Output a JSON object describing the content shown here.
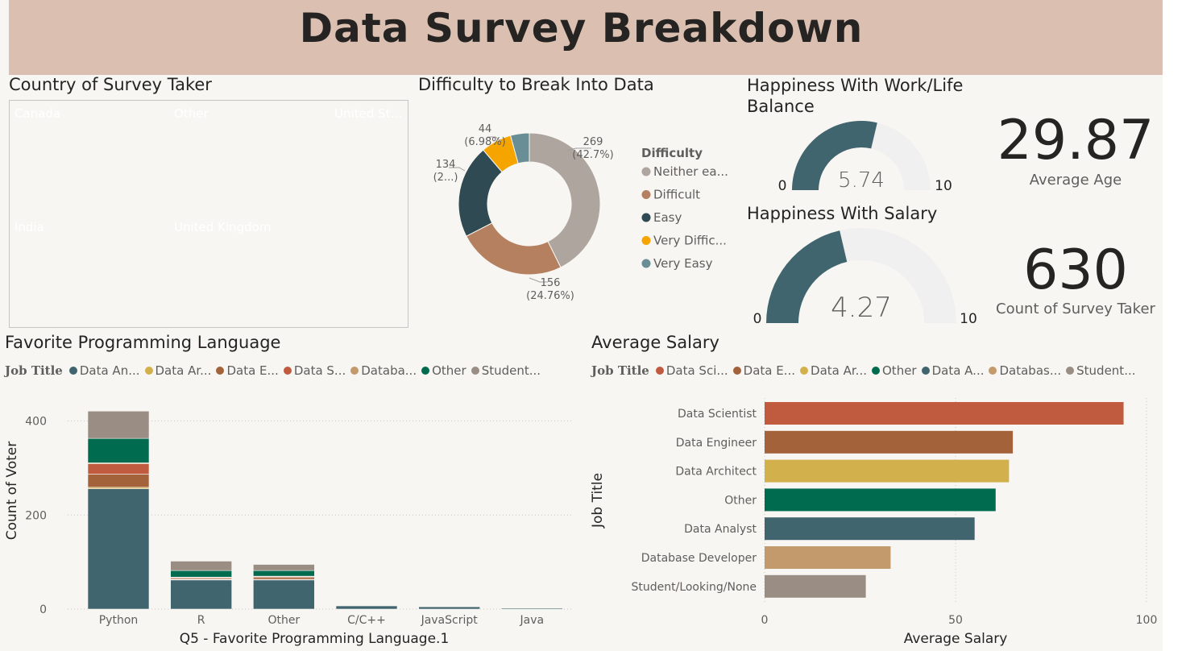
{
  "title": "Data Survey Breakdown",
  "colors": {
    "data_analyst": "#41656f",
    "data_architect": "#d2b04c",
    "data_engineer": "#a4623a",
    "data_scientist": "#c05b3f",
    "database_developer": "#c39a6b",
    "other": "#006b4e",
    "student": "#998d84"
  },
  "treemap": {
    "title": "Country of Survey Taker",
    "tiles": [
      {
        "label": "Canada",
        "color": "#41656f"
      },
      {
        "label": "Other",
        "color": "#a4623a"
      },
      {
        "label": "United St...",
        "color": "#c39a6b"
      },
      {
        "label": "India",
        "color": "#d2b04c"
      },
      {
        "label": "United Kingdom",
        "color": "#c05b3f"
      }
    ]
  },
  "donut": {
    "title": "Difficulty to Break Into Data",
    "legend_title": "Difficulty",
    "slices": [
      {
        "legend": "Neither ea...",
        "value": 269,
        "label1": "269",
        "label2": "(42.7%)",
        "color": "#aea59e"
      },
      {
        "legend": "Difficult",
        "value": 156,
        "label1": "156",
        "label2": "(24.76%)",
        "color": "#b5805f"
      },
      {
        "legend": "Easy",
        "value": 134,
        "label1": "134",
        "label2": "(2...)",
        "color": "#2f4a52"
      },
      {
        "legend": "Very Diffic...",
        "value": 44,
        "label1": "44",
        "label2": "(6.98%)",
        "color": "#f6a400"
      },
      {
        "legend": "Very Easy",
        "value": 27,
        "label1": "",
        "label2": "",
        "color": "#6a8e96"
      }
    ]
  },
  "gauge_worklife": {
    "title_line1": "Happiness With Work/Life",
    "title_line2": "Balance",
    "value": 5.74,
    "value_text": "5.74",
    "min": 0,
    "max": 10,
    "min_text": "0",
    "max_text": "10"
  },
  "gauge_salary": {
    "title": "Happiness With Salary",
    "value": 4.27,
    "value_text": "4.27",
    "min": 0,
    "max": 10,
    "min_text": "0",
    "max_text": "10"
  },
  "card_age": {
    "value": "29.87",
    "label": "Average Age"
  },
  "card_count": {
    "value": "630",
    "label": "Count of Survey Taker"
  },
  "chart_data": [
    {
      "type": "bar",
      "stacked": true,
      "title": "Favorite Programming Language",
      "legend_title": "Job Title",
      "legend": [
        "Data An...",
        "Data Ar...",
        "Data E...",
        "Data S...",
        "Databa...",
        "Other",
        "Student..."
      ],
      "xlabel": "Q5 - Favorite Programming Language.1",
      "ylabel": "Count of Voter",
      "ylim": [
        0,
        430
      ],
      "yticks": [
        0,
        200,
        400
      ],
      "categories": [
        "Python",
        "R",
        "Other",
        "C/C++",
        "JavaScript",
        "Java"
      ],
      "series": [
        {
          "name": "Data An...",
          "color": "#41656f",
          "values": [
            256,
            62,
            62,
            7,
            5,
            2
          ]
        },
        {
          "name": "Data Ar...",
          "color": "#d2b04c",
          "values": [
            3,
            1,
            1,
            0,
            0,
            0
          ]
        },
        {
          "name": "Data E...",
          "color": "#a4623a",
          "values": [
            28,
            2,
            4,
            0,
            0,
            0
          ]
        },
        {
          "name": "Data S...",
          "color": "#c05b3f",
          "values": [
            22,
            2,
            2,
            0,
            0,
            0
          ]
        },
        {
          "name": "Databa...",
          "color": "#c39a6b",
          "values": [
            2,
            1,
            1,
            0,
            1,
            0
          ]
        },
        {
          "name": "Other",
          "color": "#006b4e",
          "values": [
            52,
            14,
            12,
            1,
            1,
            0
          ]
        },
        {
          "name": "Student...",
          "color": "#998d84",
          "values": [
            58,
            20,
            13,
            0,
            1,
            0
          ]
        }
      ]
    },
    {
      "type": "bar",
      "orientation": "horizontal",
      "title": "Average Salary",
      "legend_title": "Job Title",
      "legend": [
        "Data Sci...",
        "Data E...",
        "Data Ar...",
        "Other",
        "Data A...",
        "Databas...",
        "Student..."
      ],
      "xlabel": "Average Salary",
      "ylabel": "Job Title",
      "xlim": [
        0,
        100
      ],
      "xticks": [
        0,
        50,
        100
      ],
      "categories": [
        "Data Scientist",
        "Data Engineer",
        "Data Architect",
        "Other",
        "Data Analyst",
        "Database Developer",
        "Student/Looking/None"
      ],
      "values": [
        94,
        65,
        64,
        60.5,
        55,
        33,
        26.5
      ],
      "colors": [
        "#c05b3f",
        "#a4623a",
        "#d2b04c",
        "#006b4e",
        "#41656f",
        "#c39a6b",
        "#998d84"
      ]
    }
  ]
}
